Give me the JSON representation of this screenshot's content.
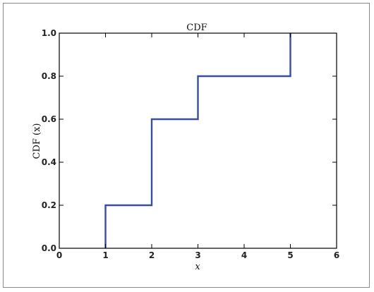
{
  "chart_data": {
    "type": "line",
    "title": "CDF",
    "xlabel": "x",
    "ylabel": "CDF (x)",
    "xlim": [
      0,
      6
    ],
    "ylim": [
      0.0,
      1.0
    ],
    "xticks": [
      "0",
      "1",
      "2",
      "3",
      "4",
      "5",
      "6"
    ],
    "yticks": [
      "0.0",
      "0.2",
      "0.4",
      "0.6",
      "0.8",
      "1.0"
    ],
    "grid": false,
    "line_color": "#3a4e9c",
    "series": [
      {
        "x": [
          1,
          1,
          2,
          2,
          3,
          3,
          5,
          5
        ],
        "y": [
          0.0,
          0.2,
          0.2,
          0.6,
          0.6,
          0.8,
          0.8,
          1.0
        ]
      }
    ]
  }
}
